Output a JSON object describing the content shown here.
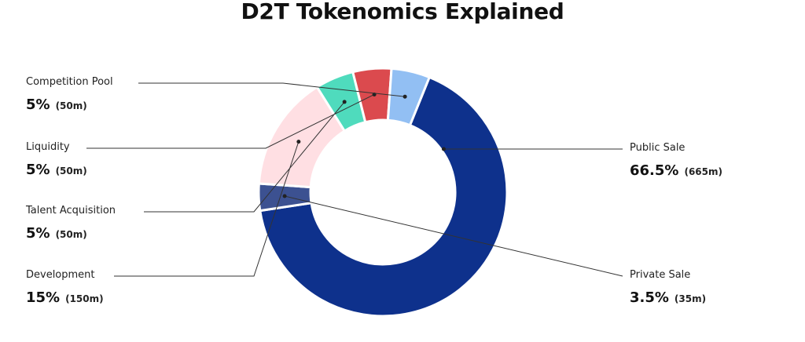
{
  "chart_data": {
    "type": "pie",
    "title": "D2T Tokenomics Explained",
    "subtitle": "",
    "slices": [
      {
        "name": "Public Sale",
        "percent": 66.5,
        "amount_label": "(665m)",
        "percent_label": "66.5%",
        "color": "#0e318c",
        "legend_side": "right"
      },
      {
        "name": "Private Sale",
        "percent": 3.5,
        "amount_label": "(35m)",
        "percent_label": "3.5%",
        "color": "#3c5191",
        "legend_side": "right"
      },
      {
        "name": "Development",
        "percent": 15,
        "amount_label": "(150m)",
        "percent_label": "15%",
        "color": "#ffdfe3",
        "legend_side": "left"
      },
      {
        "name": "Talent Acquisition",
        "percent": 5,
        "amount_label": "(50m)",
        "percent_label": "5%",
        "color": "#4fdbbd",
        "legend_side": "left"
      },
      {
        "name": "Liquidity",
        "percent": 5,
        "amount_label": "(50m)",
        "percent_label": "5%",
        "color": "#db4a4e",
        "legend_side": "left"
      },
      {
        "name": "Competition Pool",
        "percent": 5,
        "amount_label": "(50m)",
        "percent_label": "5%",
        "color": "#92bff3",
        "legend_side": "left"
      }
    ],
    "donut": true
  }
}
